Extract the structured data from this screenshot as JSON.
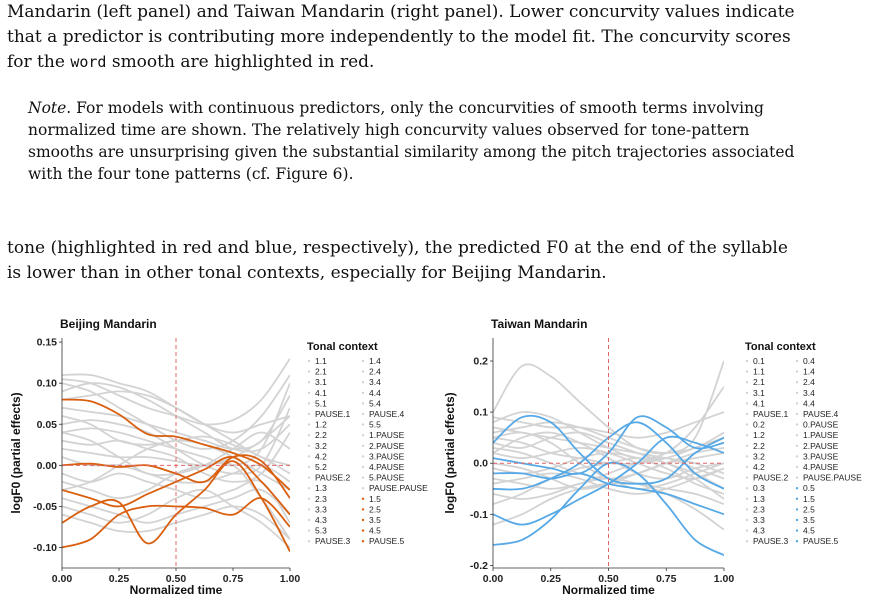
{
  "caption": {
    "line1": "Mandarin (left panel) and Taiwan Mandarin (right panel). Lower concurvity values indicate",
    "line2": "that a predictor is contributing more independently to the model fit. The concurvity scores",
    "line3_pre": "for the ",
    "line3_code": "word",
    "line3_post": " smooth are highlighted in red."
  },
  "note": {
    "label": "Note",
    "line1": ". For models with continuous predictors, only the concurvities of smooth terms involving",
    "line2": "normalized time are shown. The relatively high concurvity values observed for tone-pattern",
    "line3": "smooths are unsurprising given the substantial similarity among the pitch trajectories associated",
    "line4": "with the four tone patterns (cf. Figure 6)."
  },
  "body": {
    "line1": "tone (highlighted in red and blue, respectively), the predicted F0 at the end of the syllable",
    "line2": "is lower than in other tonal contexts, especially for Beijing Mandarin."
  },
  "chart_data": [
    {
      "type": "line",
      "title": "Beijing Mandarin",
      "xlabel": "Normalized time",
      "ylabel": "logF0 (partial effects)",
      "xlim": [
        0,
        1
      ],
      "ylim": [
        -0.125,
        0.155
      ],
      "xticks": [
        0.0,
        0.25,
        0.5,
        0.75,
        1.0
      ],
      "xtick_labels": [
        "0.00",
        "0.25",
        "0.50",
        "0.75",
        "1.00"
      ],
      "yticks": [
        -0.1,
        -0.05,
        0.0,
        0.05,
        0.1,
        0.15
      ],
      "ytick_labels": [
        "-0.10",
        "-0.05",
        "0.00",
        "0.05",
        "0.10",
        "0.15"
      ],
      "highlight_color": "#d95f0e",
      "grey_color": "#d3d3d3",
      "ref_lines": {
        "x": 0.5,
        "y": 0.0,
        "color": "#e06666"
      },
      "legend_title": "Tonal context",
      "legend_col1": [
        "1.1",
        "2.1",
        "3.1",
        "4.1",
        "5.1",
        "PAUSE.1",
        "1.2",
        "2.2",
        "3.2",
        "4.2",
        "5.2",
        "PAUSE.2",
        "1.3",
        "2.3",
        "3.3",
        "4.3",
        "5.3",
        "PAUSE.3"
      ],
      "legend_col2": [
        "1.4",
        "2.4",
        "3.4",
        "4.4",
        "5.4",
        "PAUSE.4",
        "5.5",
        "1.PAUSE",
        "2.PAUSE",
        "3.PAUSE",
        "4.PAUSE",
        "5.PAUSE",
        "PAUSE.PAUSE",
        "1.5",
        "2.5",
        "3.5",
        "4.5",
        "PAUSE.5"
      ],
      "legend_highlight_col2": [
        13,
        14,
        15,
        16,
        17
      ],
      "x": [
        0,
        0.125,
        0.25,
        0.375,
        0.5,
        0.625,
        0.75,
        0.875,
        1.0
      ],
      "series_highlight": [
        [
          0.08,
          0.078,
          0.062,
          0.038,
          0.035,
          0.025,
          0.015,
          0.0,
          -0.03
        ],
        [
          0.0,
          0.002,
          -0.002,
          0.0,
          -0.01,
          -0.02,
          0.01,
          0.005,
          -0.04
        ],
        [
          -0.03,
          -0.04,
          -0.05,
          -0.035,
          -0.02,
          -0.005,
          0.01,
          -0.02,
          -0.06
        ],
        [
          -0.07,
          -0.05,
          -0.045,
          -0.095,
          -0.06,
          -0.03,
          0.005,
          -0.04,
          -0.105
        ],
        [
          -0.1,
          -0.09,
          -0.06,
          -0.05,
          -0.05,
          -0.052,
          -0.06,
          -0.04,
          -0.075
        ]
      ],
      "series_grey": [
        [
          0.105,
          0.1,
          0.085,
          0.07,
          0.06,
          0.05,
          0.055,
          0.08,
          0.13
        ],
        [
          0.1,
          0.09,
          0.07,
          0.05,
          0.03,
          0.02,
          0.03,
          0.06,
          0.11
        ],
        [
          0.09,
          0.1,
          0.095,
          0.08,
          0.06,
          0.04,
          0.02,
          0.02,
          0.05
        ],
        [
          0.07,
          0.065,
          0.06,
          0.05,
          0.04,
          0.03,
          0.02,
          0.03,
          0.085
        ],
        [
          0.06,
          0.05,
          0.03,
          0.025,
          0.03,
          0.035,
          0.025,
          0.01,
          -0.01
        ],
        [
          0.05,
          0.055,
          0.05,
          0.04,
          0.02,
          0.0,
          -0.01,
          0.0,
          0.07
        ],
        [
          0.04,
          0.045,
          0.04,
          0.03,
          0.02,
          0.01,
          0.0,
          0.02,
          0.1
        ],
        [
          0.03,
          0.025,
          0.03,
          0.02,
          0.01,
          -0.01,
          -0.02,
          -0.01,
          0.04
        ],
        [
          0.02,
          0.015,
          0.01,
          0.01,
          0.005,
          0.0,
          0.01,
          0.03,
          0.06
        ],
        [
          0.01,
          0.0,
          0.0,
          -0.01,
          -0.02,
          -0.02,
          -0.01,
          0.0,
          -0.02
        ],
        [
          -0.01,
          -0.02,
          -0.01,
          -0.02,
          -0.03,
          -0.04,
          -0.03,
          -0.02,
          -0.07
        ],
        [
          -0.02,
          -0.03,
          -0.04,
          -0.03,
          -0.01,
          0.0,
          0.0,
          -0.04,
          -0.09
        ],
        [
          -0.04,
          -0.05,
          -0.06,
          -0.07,
          -0.06,
          -0.05,
          -0.04,
          -0.03,
          -0.06
        ],
        [
          -0.05,
          -0.06,
          -0.07,
          -0.06,
          -0.04,
          -0.03,
          -0.05,
          -0.07,
          -0.1
        ],
        [
          -0.06,
          -0.07,
          -0.08,
          -0.08,
          -0.07,
          -0.06,
          -0.05,
          -0.06,
          -0.09
        ],
        [
          0.11,
          0.11,
          0.1,
          0.09,
          0.07,
          0.05,
          0.04,
          0.05,
          0.06
        ],
        [
          0.08,
          0.085,
          0.09,
          0.085,
          0.07,
          0.05,
          0.03,
          0.01,
          0.0
        ],
        [
          0.04,
          0.03,
          0.01,
          -0.01,
          -0.01,
          0.0,
          0.02,
          0.04,
          0.02
        ],
        [
          -0.03,
          -0.02,
          0.0,
          0.02,
          0.03,
          0.025,
          0.01,
          -0.01,
          -0.03
        ]
      ]
    },
    {
      "type": "line",
      "title": "Taiwan Mandarin",
      "xlabel": "Normalized time",
      "ylabel": "logF0 (partial effects)",
      "xlim": [
        0,
        1
      ],
      "ylim": [
        -0.205,
        0.245
      ],
      "xticks": [
        0.0,
        0.25,
        0.5,
        0.75,
        1.0
      ],
      "xtick_labels": [
        "0.00",
        "0.25",
        "0.50",
        "0.75",
        "1.00"
      ],
      "yticks": [
        -0.2,
        -0.1,
        0.0,
        0.1,
        0.2
      ],
      "ytick_labels": [
        "-0.2",
        "-0.1",
        "0.0",
        "0.1",
        "0.2"
      ],
      "highlight_color": "#56a9e6",
      "grey_color": "#d3d3d3",
      "ref_lines": {
        "x": 0.5,
        "y": 0.0,
        "color": "#e06666"
      },
      "legend_title": "Tonal context",
      "legend_col1": [
        "0.1",
        "1.1",
        "2.1",
        "3.1",
        "4.1",
        "PAUSE.1",
        "0.2",
        "1.2",
        "2.2",
        "3.2",
        "4.2",
        "PAUSE.2",
        "0.3",
        "1.3",
        "2.3",
        "3.3",
        "4.3",
        "PAUSE.3"
      ],
      "legend_col2": [
        "0.4",
        "1.4",
        "2.4",
        "3.4",
        "4.4",
        "PAUSE.4",
        "0.PAUSE",
        "1.PAUSE",
        "2.PAUSE",
        "3.PAUSE",
        "4.PAUSE",
        "PAUSE.PAUSE",
        "0.5",
        "1.5",
        "2.5",
        "3.5",
        "4.5",
        "PAUSE.5"
      ],
      "legend_highlight_col2": [
        12,
        13,
        14,
        15,
        16,
        17
      ],
      "x": [
        0,
        0.125,
        0.25,
        0.375,
        0.5,
        0.625,
        0.75,
        0.875,
        1.0
      ],
      "series_highlight": [
        [
          0.04,
          0.09,
          0.08,
          0.02,
          -0.03,
          -0.04,
          -0.03,
          0.02,
          0.05
        ],
        [
          0.01,
          0.0,
          -0.01,
          -0.02,
          0.02,
          0.09,
          0.07,
          0.03,
          0.04
        ],
        [
          -0.05,
          -0.05,
          -0.03,
          0.0,
          0.05,
          0.08,
          0.04,
          -0.02,
          -0.05
        ],
        [
          -0.1,
          -0.12,
          -0.1,
          -0.07,
          -0.04,
          0.0,
          0.05,
          0.04,
          0.02
        ],
        [
          -0.16,
          -0.15,
          -0.11,
          -0.05,
          0.0,
          -0.02,
          -0.08,
          -0.15,
          -0.18
        ],
        [
          -0.02,
          -0.02,
          -0.03,
          -0.02,
          -0.04,
          -0.05,
          -0.06,
          -0.08,
          -0.1
        ]
      ],
      "series_grey": [
        [
          0.1,
          0.19,
          0.17,
          0.12,
          0.07,
          0.03,
          0.02,
          0.05,
          0.2
        ],
        [
          0.08,
          0.1,
          0.09,
          0.06,
          0.03,
          0.01,
          0.02,
          0.07,
          0.15
        ],
        [
          0.07,
          0.06,
          0.05,
          0.04,
          0.03,
          0.02,
          0.01,
          0.0,
          -0.02
        ],
        [
          0.06,
          0.07,
          0.08,
          0.07,
          0.05,
          0.03,
          0.02,
          0.03,
          0.06
        ],
        [
          0.05,
          0.04,
          0.02,
          0.01,
          0.0,
          0.0,
          0.01,
          0.03,
          0.05
        ],
        [
          0.04,
          0.03,
          0.05,
          0.06,
          0.04,
          0.02,
          0.0,
          -0.02,
          -0.05
        ],
        [
          0.03,
          0.02,
          0.0,
          -0.02,
          -0.03,
          -0.02,
          0.0,
          0.02,
          0.03
        ],
        [
          0.02,
          0.01,
          0.02,
          0.03,
          0.02,
          0.0,
          -0.02,
          -0.03,
          -0.01
        ],
        [
          0.0,
          -0.01,
          -0.03,
          -0.05,
          -0.04,
          -0.02,
          0.0,
          0.01,
          0.02
        ],
        [
          -0.01,
          -0.02,
          -0.01,
          0.01,
          0.02,
          0.01,
          -0.01,
          -0.04,
          -0.06
        ],
        [
          -0.03,
          -0.04,
          -0.05,
          -0.04,
          -0.02,
          0.0,
          0.01,
          -0.01,
          -0.03
        ],
        [
          -0.04,
          -0.03,
          -0.02,
          -0.03,
          -0.05,
          -0.06,
          -0.05,
          -0.03,
          -0.01
        ],
        [
          -0.06,
          -0.07,
          -0.06,
          -0.04,
          -0.03,
          -0.04,
          -0.06,
          -0.09,
          -0.13
        ],
        [
          0.09,
          0.08,
          0.07,
          0.07,
          0.06,
          0.05,
          0.06,
          0.08,
          0.1
        ],
        [
          0.02,
          0.05,
          0.06,
          0.04,
          0.01,
          -0.02,
          -0.03,
          -0.01,
          0.0
        ],
        [
          -0.08,
          -0.06,
          -0.03,
          -0.01,
          0.0,
          0.01,
          0.0,
          -0.03,
          -0.07
        ],
        [
          0.05,
          0.06,
          0.04,
          0.0,
          -0.03,
          -0.05,
          -0.04,
          -0.02,
          0.0
        ],
        [
          -0.12,
          -0.1,
          -0.07,
          -0.05,
          -0.04,
          -0.04,
          -0.05,
          -0.06,
          -0.08
        ]
      ]
    }
  ]
}
